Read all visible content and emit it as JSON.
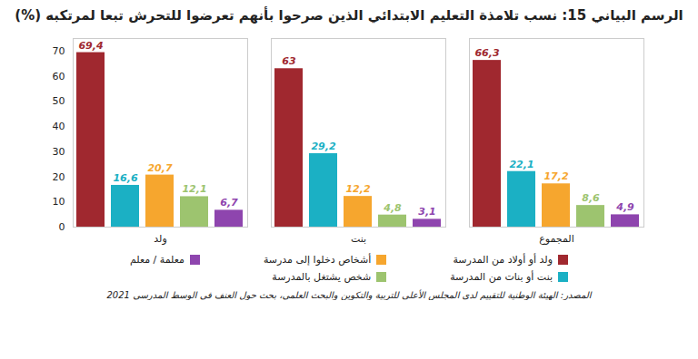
{
  "chart_data": {
    "type": "bar",
    "title": "الرسم البياني 15: نسب تلامذة التعليم الابتدائي الذين صرحوا بأنهم تعرضوا للتحرش تبعا لمرتكبه (%)",
    "source": "المصدر: الهيئة الوطنية للتقييم لدى المجلس الأعلى للتربية والتكوين والبحث العلمي، بحث حول العنف في الوسط المدرسي 2021",
    "categories": [
      "ولد",
      "بنت",
      "المجموع"
    ],
    "series": [
      {
        "name": "ولد أو أولاد من المدرسة",
        "color": "#a0282f",
        "values": [
          69.4,
          63,
          66.3
        ],
        "value_labels": [
          "69,4",
          "63",
          "66,3"
        ]
      },
      {
        "name": "بنت أو بنات من المدرسة",
        "color": "#1bb0c4",
        "values": [
          16.6,
          29.2,
          22.1
        ],
        "value_labels": [
          "16,6",
          "29,2",
          "22,1"
        ]
      },
      {
        "name": "أشخاص دخلوا إلى مدرسة",
        "color": "#f6a62e",
        "values": [
          20.7,
          12.2,
          17.2
        ],
        "value_labels": [
          "20,7",
          "12,2",
          "17,2"
        ]
      },
      {
        "name": "شخص يشتغل بالمدرسة",
        "color": "#9dc46f",
        "values": [
          12.1,
          4.8,
          8.6
        ],
        "value_labels": [
          "12,1",
          "4,8",
          "8,6"
        ]
      },
      {
        "name": "معلمة / معلم",
        "color": "#8e45ae",
        "values": [
          6.7,
          3.1,
          4.9
        ],
        "value_labels": [
          "6,7",
          "3,1",
          "4,9"
        ]
      }
    ],
    "ylim": [
      0,
      75
    ],
    "yticks": [
      0,
      10,
      20,
      30,
      40,
      50,
      60,
      70
    ],
    "grid": false,
    "data_labels": true,
    "legend": "bottom"
  }
}
